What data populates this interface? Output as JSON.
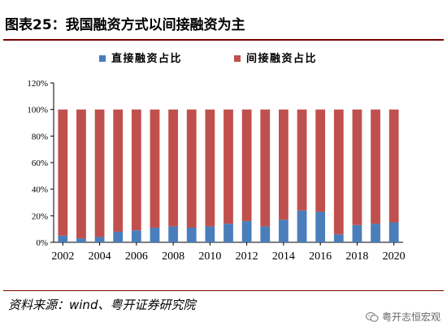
{
  "figure": {
    "title": "图表25：我国融资方式以间接融资为主",
    "source": "资料来源：wind、粤开证券研究院",
    "watermark": "粤开志恒宏观",
    "watermark_icon": "wechat-icon"
  },
  "colors": {
    "direct": "#4a7ebb",
    "indirect": "#c0504d",
    "rule": "#7a0000"
  },
  "chart_data": {
    "type": "bar",
    "stacked": true,
    "normalized_percent": true,
    "categories": [
      "2002",
      "2003",
      "2004",
      "2005",
      "2006",
      "2007",
      "2008",
      "2009",
      "2010",
      "2011",
      "2012",
      "2013",
      "2014",
      "2015",
      "2016",
      "2017",
      "2018",
      "2019",
      "2020"
    ],
    "x_tick_labels": [
      "2002",
      "2004",
      "2006",
      "2008",
      "2010",
      "2012",
      "2014",
      "2016",
      "2018",
      "2020"
    ],
    "series": [
      {
        "name": "直接融资占比",
        "values": [
          5,
          3,
          4,
          8,
          9,
          11,
          12,
          11,
          12,
          14,
          16,
          12,
          17,
          24,
          23,
          6,
          13,
          14,
          15
        ]
      },
      {
        "name": "间接融资占比",
        "values": [
          95,
          97,
          96,
          92,
          91,
          89,
          88,
          89,
          88,
          86,
          84,
          88,
          83,
          76,
          77,
          94,
          87,
          86,
          85
        ]
      }
    ],
    "ylim": [
      0,
      120
    ],
    "yticks": [
      "0%",
      "20%",
      "40%",
      "60%",
      "80%",
      "100%",
      "120%"
    ],
    "legend_position": "top-center",
    "grid": false,
    "xlabel": "",
    "ylabel": ""
  }
}
